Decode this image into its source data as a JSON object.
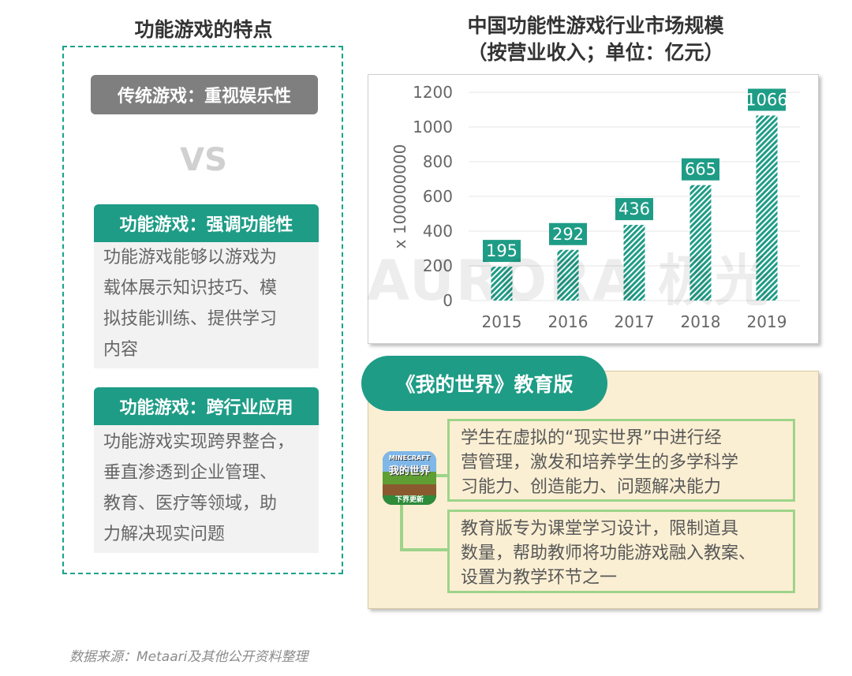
{
  "left": {
    "title": "功能游戏的特点",
    "traditional": "传统游戏：重视娱乐性",
    "vs": "VS",
    "functional_head": "功能游戏：强调功能性",
    "functional_lines": [
      "功能游戏能够以游戏为",
      "载体展示知识技巧、模",
      "拟技能训练、提供学习",
      "内容"
    ],
    "cross_head": "功能游戏：跨行业应用",
    "cross_lines": [
      "功能游戏实现跨界整合，",
      "垂直渗透到企业管理、",
      "教育、医疗等领域，助",
      "力解决现实问题"
    ]
  },
  "chart_data": {
    "type": "bar",
    "title": "中国功能性游戏行业市场规模",
    "subtitle": "（按营业收入；单位：亿元）",
    "ylabel": "x 100000000",
    "xlabel": "",
    "categories": [
      "2015",
      "2016",
      "2017",
      "2018",
      "2019"
    ],
    "values": [
      195,
      292,
      436,
      665,
      1066
    ],
    "ylim": [
      0,
      1200
    ],
    "yticks": [
      0,
      200,
      400,
      600,
      800,
      1000,
      1200
    ],
    "grid": true,
    "bar_color": "#1e9c86",
    "label_bg": "#1e9c86"
  },
  "edu": {
    "title": "《我的世界》教育版",
    "box1_lines": [
      "学生在虚拟的“现实世界”中进行经",
      "营管理，激发和培养学生的多学科学",
      "习能力、创造能力、问题解决能力"
    ],
    "box2_lines": [
      "教育版专为课堂学习设计，限制道具",
      "数量，帮助教师将功能游戏融入教案、",
      "设置为教学环节之一"
    ],
    "icon_text": "我的世界",
    "icon_top": "MINECRAFT",
    "icon_band": "下界更新"
  },
  "watermark": "AURORA 极光",
  "source": "数据来源：Metaari及其他公开资料整理"
}
